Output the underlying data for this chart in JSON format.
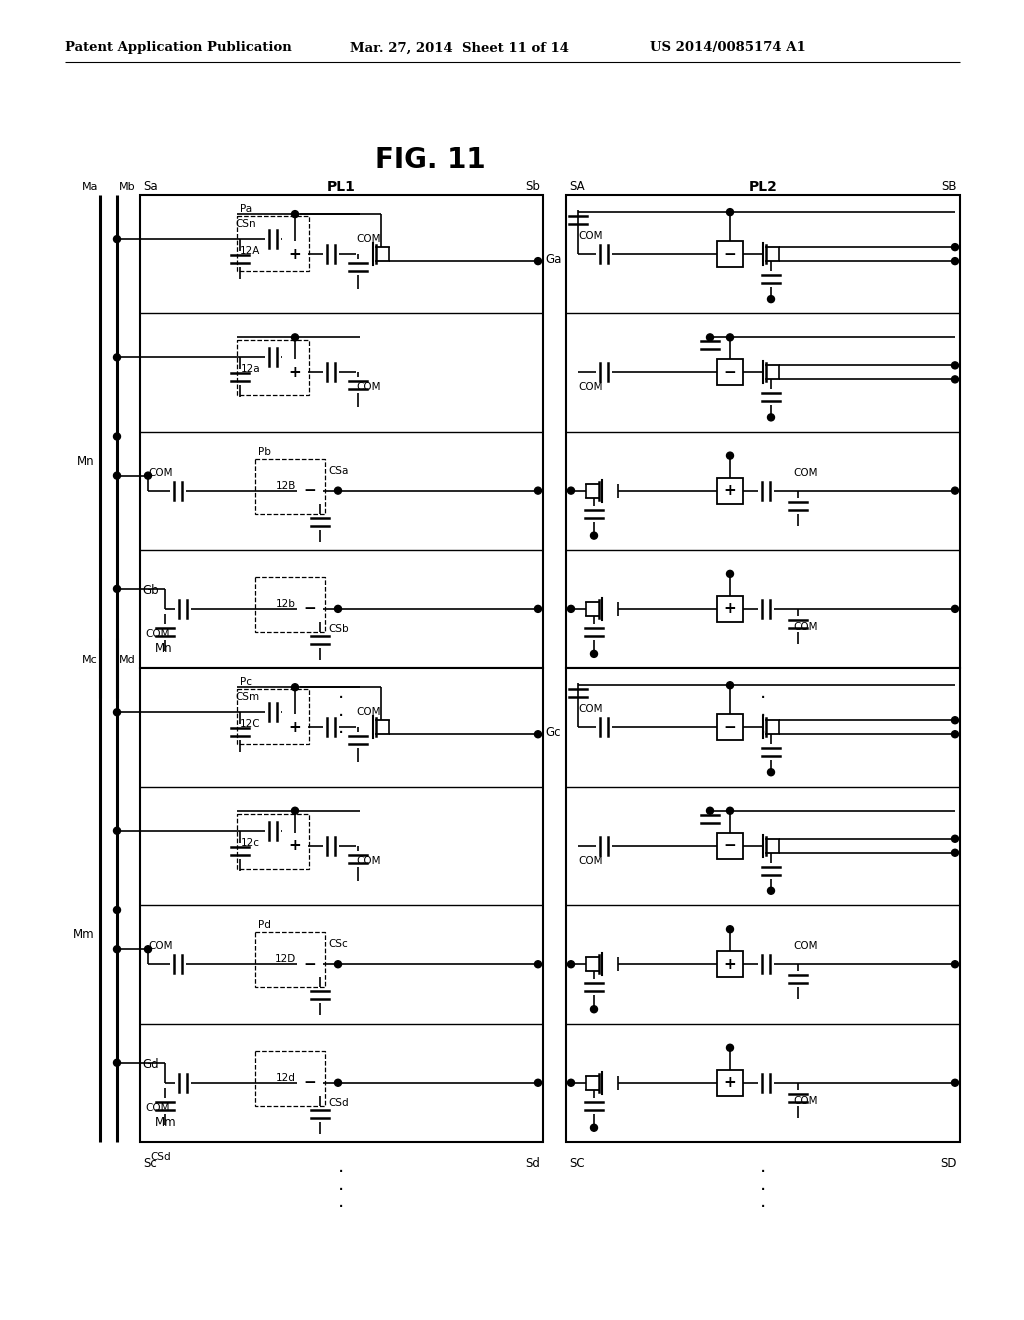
{
  "title": "FIG. 11",
  "header_left": "Patent Application Publication",
  "header_mid": "Mar. 27, 2014  Sheet 11 of 14",
  "header_right": "US 2014/0085174 A1",
  "bg_color": "#ffffff"
}
